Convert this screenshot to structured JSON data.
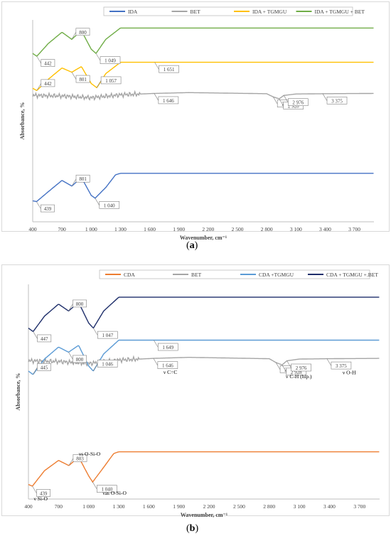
{
  "chart_data": [
    {
      "type": "line",
      "panel_label": "a",
      "xlabel": "Wavenumber, cm⁻¹",
      "ylabel": "Absorbance, %",
      "xlim": [
        400,
        3900
      ],
      "xticks": [
        400,
        700,
        1000,
        1300,
        1600,
        1900,
        2200,
        2500,
        2800,
        3100,
        3400,
        3700
      ],
      "xtick_labels": [
        "400",
        "700",
        "1 000",
        "1 300",
        "1 600",
        "1 900",
        "2 200",
        "2 500",
        "2 800",
        "3 100",
        "3 400",
        "3 700"
      ],
      "legend_position": "top",
      "series": [
        {
          "name": "IDA",
          "color": "#4472c4",
          "offset": 0.1,
          "x": [
            400,
            439,
            560,
            700,
            801,
            900,
            1000,
            1040,
            1150,
            1250,
            1300,
            2000,
            3900
          ],
          "y": [
            0.03,
            0.0,
            0.35,
            0.75,
            0.55,
            0.85,
            0.22,
            0.12,
            0.5,
            0.95,
            1.0,
            1.0,
            1.0
          ]
        },
        {
          "name": "BET",
          "color": "#a5a5a5",
          "offset": 0.5,
          "x": [
            400,
            700,
            1000,
            1300,
            1646,
            2000,
            2800,
            2866,
            2928,
            2976,
            3100,
            3375,
            3900
          ],
          "y": [
            0.9,
            0.88,
            0.82,
            0.92,
            0.97,
            1.0,
            0.96,
            0.85,
            0.78,
            0.9,
            0.95,
            0.96,
            0.97
          ]
        },
        {
          "name": "IDA + TGMGU",
          "color": "#ffc000",
          "offset": 0.65,
          "x": [
            400,
            442,
            560,
            700,
            801,
            900,
            1000,
            1057,
            1150,
            1300,
            1651,
            3900
          ],
          "y": [
            0.08,
            0.0,
            0.4,
            0.8,
            0.65,
            0.85,
            0.25,
            0.1,
            0.6,
            1.0,
            1.0,
            1.0
          ]
        },
        {
          "name": "IDA + TGMGU + BET",
          "color": "#70ad47",
          "offset": 0.82,
          "x": [
            400,
            442,
            560,
            700,
            800,
            900,
            1000,
            1049,
            1150,
            1300,
            2000,
            3900
          ],
          "y": [
            0.1,
            0.0,
            0.45,
            0.85,
            0.6,
            0.9,
            0.25,
            0.1,
            0.6,
            1.0,
            1.0,
            1.0
          ]
        }
      ],
      "annotations": [
        {
          "text": "442",
          "series": "IDA + TGMGU + BET",
          "x": 442
        },
        {
          "text": "800",
          "series": "IDA + TGMGU + BET",
          "x": 800
        },
        {
          "text": "1 049",
          "series": "IDA + TGMGU + BET",
          "x": 1049
        },
        {
          "text": "442",
          "series": "IDA + TGMGU",
          "x": 442
        },
        {
          "text": "801",
          "series": "IDA + TGMGU",
          "x": 801
        },
        {
          "text": "1 057",
          "series": "IDA + TGMGU",
          "x": 1057
        },
        {
          "text": "1 651",
          "series": "IDA + TGMGU",
          "x": 1651
        },
        {
          "text": "1 646",
          "series": "BET",
          "x": 1646
        },
        {
          "text": "2 866",
          "series": "BET",
          "x": 2866
        },
        {
          "text": "2 928",
          "series": "BET",
          "x": 2928
        },
        {
          "text": "2 976",
          "series": "BET",
          "x": 2976
        },
        {
          "text": "3 375",
          "series": "BET",
          "x": 3375
        },
        {
          "text": "439",
          "series": "IDA",
          "x": 439
        },
        {
          "text": "801",
          "series": "IDA",
          "x": 801
        },
        {
          "text": "1 040",
          "series": "IDA",
          "x": 1040
        }
      ]
    },
    {
      "type": "line",
      "panel_label": "b",
      "xlabel": "Wavenumber, cm⁻¹",
      "ylabel": "Absorbance, %",
      "xlim": [
        400,
        3900
      ],
      "xticks": [
        400,
        700,
        1000,
        1300,
        1600,
        1900,
        2200,
        2500,
        2800,
        3100,
        3400,
        3700
      ],
      "xtick_labels": [
        "400",
        "700",
        "1 000",
        "1 300",
        "1 600",
        "1 900",
        "2 200",
        "2 500",
        "2 800",
        "3 100",
        "3 400",
        "3 700"
      ],
      "legend_position": "top",
      "series": [
        {
          "name": "CDA",
          "color": "#ed7d31",
          "offset": 0.06,
          "x": [
            400,
            439,
            560,
            700,
            803,
            900,
            1000,
            1040,
            1150,
            1250,
            1300,
            2000,
            3900
          ],
          "y": [
            0.05,
            0.0,
            0.45,
            0.75,
            0.6,
            0.85,
            0.3,
            0.12,
            0.55,
            0.95,
            1.0,
            1.0,
            1.0
          ]
        },
        {
          "name": "BET",
          "color": "#a5a5a5",
          "offset": 0.5,
          "x": [
            400,
            700,
            1000,
            1300,
            1646,
            2000,
            2800,
            2866,
            2928,
            2976,
            3100,
            3375,
            3900
          ],
          "y": [
            0.9,
            0.88,
            0.82,
            0.92,
            0.97,
            1.0,
            0.96,
            0.85,
            0.78,
            0.9,
            0.95,
            0.96,
            0.97
          ]
        },
        {
          "name": "CDA +TGMGU",
          "color": "#5b9bd5",
          "offset": 0.58,
          "x": [
            400,
            445,
            560,
            700,
            800,
            900,
            1000,
            1046,
            1150,
            1300,
            1649,
            3900
          ],
          "y": [
            0.1,
            0.0,
            0.45,
            0.8,
            0.65,
            0.85,
            0.25,
            0.1,
            0.6,
            1.0,
            1.0,
            1.0
          ]
        },
        {
          "name": "CDA + TGMGU +.BET",
          "color": "#1f2f6b",
          "offset": 0.78,
          "x": [
            400,
            447,
            560,
            700,
            800,
            900,
            1000,
            1047,
            1150,
            1300,
            2000,
            3900
          ],
          "y": [
            0.1,
            0.0,
            0.45,
            0.8,
            0.6,
            0.85,
            0.25,
            0.1,
            0.6,
            1.0,
            1.0,
            1.0
          ]
        }
      ],
      "annotations": [
        {
          "text": "447",
          "series": "CDA + TGMGU +.BET",
          "x": 447
        },
        {
          "text": "800",
          "series": "CDA + TGMGU +.BET",
          "x": 800
        },
        {
          "text": "1 047",
          "series": "CDA + TGMGU +.BET",
          "x": 1047
        },
        {
          "text": "445",
          "series": "CDA +TGMGU",
          "x": 445
        },
        {
          "text": "800",
          "series": "CDA +TGMGU",
          "x": 800
        },
        {
          "text": "1 046",
          "series": "CDA +TGMGU",
          "x": 1046
        },
        {
          "text": "1 649",
          "series": "CDA +TGMGU",
          "x": 1649
        },
        {
          "text": "1 646",
          "series": "BET",
          "x": 1646
        },
        {
          "text": "2 866",
          "series": "BET",
          "x": 2866
        },
        {
          "text": "2 928",
          "series": "BET",
          "x": 2928
        },
        {
          "text": "2 976",
          "series": "BET",
          "x": 2976
        },
        {
          "text": "3 375",
          "series": "BET",
          "x": 3375
        },
        {
          "text": "439",
          "series": "CDA",
          "x": 439
        },
        {
          "text": "803",
          "series": "CDA",
          "x": 803
        },
        {
          "text": "1 040",
          "series": "CDA",
          "x": 1040
        }
      ],
      "band_labels": [
        {
          "text": "ν C=C",
          "x": 1646
        },
        {
          "text": "ν C-H (hip.)",
          "x": 2866
        },
        {
          "text": "ν O-H",
          "x": 3375
        },
        {
          "text": "νs O-Si-O",
          "x": 803
        },
        {
          "text": "ν Si-O",
          "x": 439
        },
        {
          "text": "νas O-Si-O",
          "x": 1040
        }
      ]
    }
  ],
  "captions": {
    "a": "a",
    "b": "b"
  }
}
